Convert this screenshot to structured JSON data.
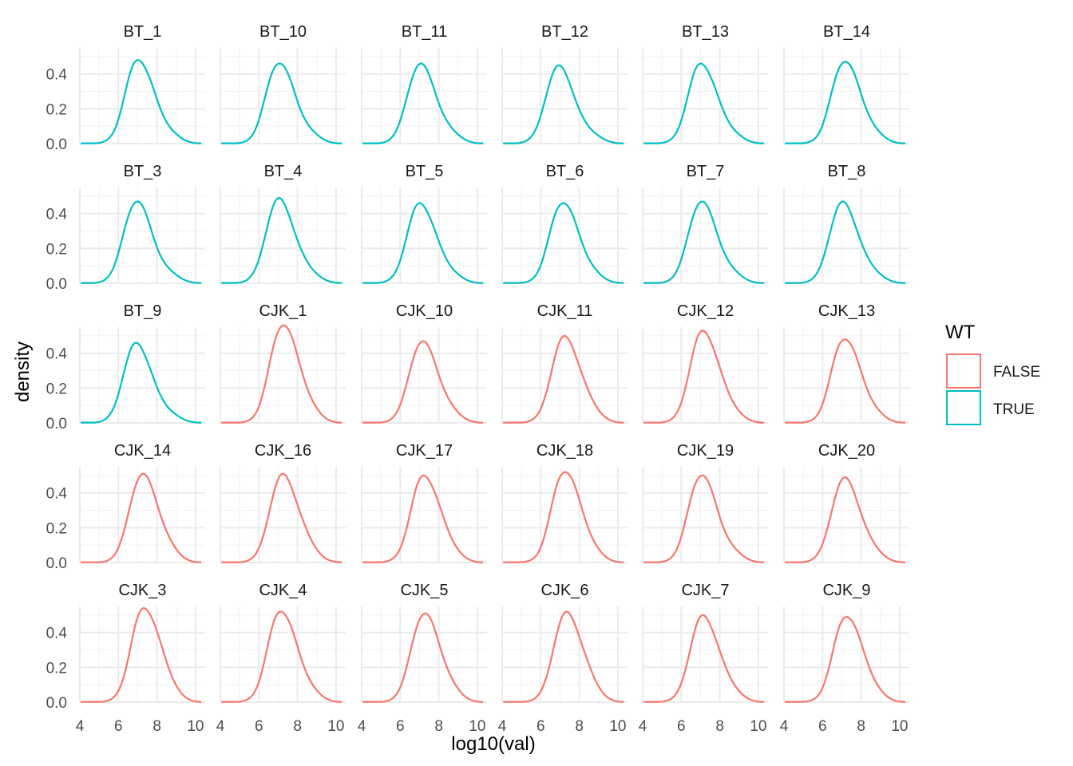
{
  "chart_data": {
    "type": "line",
    "xlabel": "log10(val)",
    "ylabel": "density",
    "xlim": [
      4,
      10.5
    ],
    "ylim": [
      0,
      0.55
    ],
    "x_ticks": [
      4,
      6,
      8,
      10
    ],
    "y_ticks": [
      0.0,
      0.2,
      0.4
    ],
    "y_tick_labels": [
      "0.0",
      "0.2",
      "0.4"
    ],
    "legend": {
      "title": "WT",
      "entries": [
        {
          "label": "FALSE",
          "color": "#F8766D"
        },
        {
          "label": "TRUE",
          "color": "#00BFC4"
        }
      ]
    },
    "panels": [
      {
        "name": "BT_1",
        "wt": "TRUE",
        "peak_x": 7.2,
        "peak": 0.48
      },
      {
        "name": "BT_10",
        "wt": "TRUE",
        "peak_x": 7.2,
        "peak": 0.46
      },
      {
        "name": "BT_11",
        "wt": "TRUE",
        "peak_x": 7.2,
        "peak": 0.46
      },
      {
        "name": "BT_12",
        "wt": "TRUE",
        "peak_x": 7.1,
        "peak": 0.45
      },
      {
        "name": "BT_13",
        "wt": "TRUE",
        "peak_x": 7.2,
        "peak": 0.46
      },
      {
        "name": "BT_14",
        "wt": "TRUE",
        "peak_x": 7.3,
        "peak": 0.47
      },
      {
        "name": "BT_3",
        "wt": "TRUE",
        "peak_x": 7.1,
        "peak": 0.47
      },
      {
        "name": "BT_4",
        "wt": "TRUE",
        "peak_x": 7.2,
        "peak": 0.49
      },
      {
        "name": "BT_5",
        "wt": "TRUE",
        "peak_x": 7.2,
        "peak": 0.46
      },
      {
        "name": "BT_6",
        "wt": "TRUE",
        "peak_x": 7.3,
        "peak": 0.46
      },
      {
        "name": "BT_7",
        "wt": "TRUE",
        "peak_x": 7.2,
        "peak": 0.47
      },
      {
        "name": "BT_8",
        "wt": "TRUE",
        "peak_x": 7.2,
        "peak": 0.47
      },
      {
        "name": "BT_9",
        "wt": "TRUE",
        "peak_x": 7.1,
        "peak": 0.46
      },
      {
        "name": "CJK_1",
        "wt": "FALSE",
        "peak_x": 7.4,
        "peak": 0.56
      },
      {
        "name": "CJK_10",
        "wt": "FALSE",
        "peak_x": 7.3,
        "peak": 0.47
      },
      {
        "name": "CJK_11",
        "wt": "FALSE",
        "peak_x": 7.4,
        "peak": 0.5
      },
      {
        "name": "CJK_12",
        "wt": "FALSE",
        "peak_x": 7.3,
        "peak": 0.53
      },
      {
        "name": "CJK_13",
        "wt": "FALSE",
        "peak_x": 7.3,
        "peak": 0.48
      },
      {
        "name": "CJK_14",
        "wt": "FALSE",
        "peak_x": 7.4,
        "peak": 0.51
      },
      {
        "name": "CJK_16",
        "wt": "FALSE",
        "peak_x": 7.4,
        "peak": 0.51
      },
      {
        "name": "CJK_17",
        "wt": "FALSE",
        "peak_x": 7.4,
        "peak": 0.5
      },
      {
        "name": "CJK_18",
        "wt": "FALSE",
        "peak_x": 7.4,
        "peak": 0.52
      },
      {
        "name": "CJK_19",
        "wt": "FALSE",
        "peak_x": 7.2,
        "peak": 0.5
      },
      {
        "name": "CJK_20",
        "wt": "FALSE",
        "peak_x": 7.3,
        "peak": 0.49
      },
      {
        "name": "CJK_3",
        "wt": "FALSE",
        "peak_x": 7.5,
        "peak": 0.54
      },
      {
        "name": "CJK_4",
        "wt": "FALSE",
        "peak_x": 7.3,
        "peak": 0.52
      },
      {
        "name": "CJK_5",
        "wt": "FALSE",
        "peak_x": 7.4,
        "peak": 0.51
      },
      {
        "name": "CJK_6",
        "wt": "FALSE",
        "peak_x": 7.5,
        "peak": 0.52
      },
      {
        "name": "CJK_7",
        "wt": "FALSE",
        "peak_x": 7.3,
        "peak": 0.5
      },
      {
        "name": "CJK_9",
        "wt": "FALSE",
        "peak_x": 7.4,
        "peak": 0.49
      }
    ]
  }
}
